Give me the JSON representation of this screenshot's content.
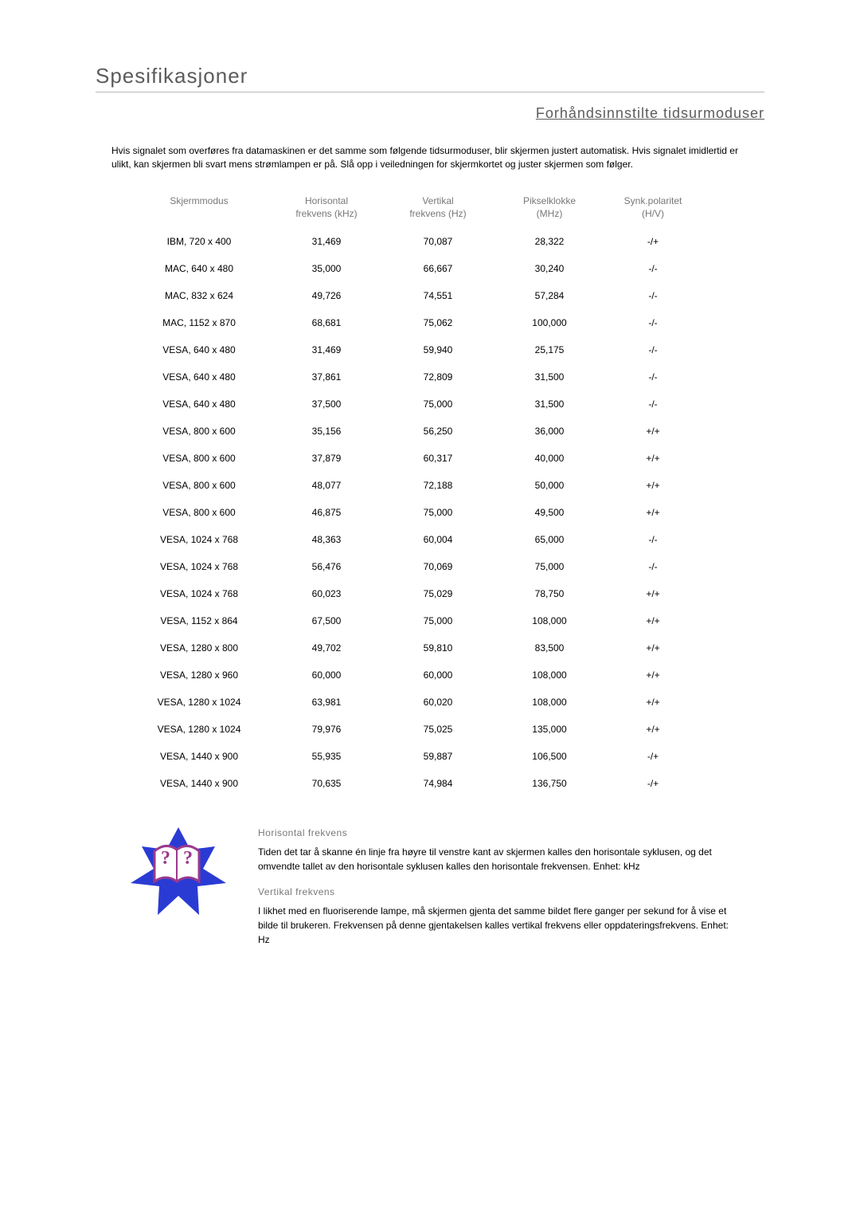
{
  "title": "Spesifikasjoner",
  "subtitle": "Forhåndsinnstilte tidsurmoduser",
  "intro": "Hvis signalet som overføres fra datamaskinen er det samme som følgende tidsurmoduser, blir skjermen justert automatisk. Hvis signalet imidlertid er ulikt, kan skjermen bli svart mens strømlampen er på. Slå opp i veiledningen for skjermkortet og juster skjermen som følger.",
  "columns": [
    "Skjermmodus",
    "Horisontal\nfrekvens (kHz)",
    "Vertikal\nfrekvens (Hz)",
    "Pikselklokke\n(MHz)",
    "Synk.polaritet\n(H/V)"
  ],
  "rows": [
    [
      "IBM, 720 x 400",
      "31,469",
      "70,087",
      "28,322",
      "-/+"
    ],
    [
      "MAC, 640 x 480",
      "35,000",
      "66,667",
      "30,240",
      "-/-"
    ],
    [
      "MAC, 832 x 624",
      "49,726",
      "74,551",
      "57,284",
      "-/-"
    ],
    [
      "MAC, 1152 x 870",
      "68,681",
      "75,062",
      "100,000",
      "-/-"
    ],
    [
      "VESA, 640 x 480",
      "31,469",
      "59,940",
      "25,175",
      "-/-"
    ],
    [
      "VESA, 640 x 480",
      "37,861",
      "72,809",
      "31,500",
      "-/-"
    ],
    [
      "VESA, 640 x 480",
      "37,500",
      "75,000",
      "31,500",
      "-/-"
    ],
    [
      "VESA, 800 x 600",
      "35,156",
      "56,250",
      "36,000",
      "+/+"
    ],
    [
      "VESA, 800 x 600",
      "37,879",
      "60,317",
      "40,000",
      "+/+"
    ],
    [
      "VESA, 800 x 600",
      "48,077",
      "72,188",
      "50,000",
      "+/+"
    ],
    [
      "VESA, 800 x 600",
      "46,875",
      "75,000",
      "49,500",
      "+/+"
    ],
    [
      "VESA, 1024 x 768",
      "48,363",
      "60,004",
      "65,000",
      "-/-"
    ],
    [
      "VESA, 1024 x 768",
      "56,476",
      "70,069",
      "75,000",
      "-/-"
    ],
    [
      "VESA, 1024 x 768",
      "60,023",
      "75,029",
      "78,750",
      "+/+"
    ],
    [
      "VESA, 1152 x 864",
      "67,500",
      "75,000",
      "108,000",
      "+/+"
    ],
    [
      "VESA, 1280 x 800",
      "49,702",
      "59,810",
      "83,500",
      "+/+"
    ],
    [
      "VESA, 1280 x 960",
      "60,000",
      "60,000",
      "108,000",
      "+/+"
    ],
    [
      "VESA, 1280 x 1024",
      "63,981",
      "60,020",
      "108,000",
      "+/+"
    ],
    [
      "VESA, 1280 x 1024",
      "79,976",
      "75,025",
      "135,000",
      "+/+"
    ],
    [
      "VESA, 1440 x 900",
      "55,935",
      "59,887",
      "106,500",
      "-/+"
    ],
    [
      "VESA, 1440 x 900",
      "70,635",
      "74,984",
      "136,750",
      "-/+"
    ]
  ],
  "explain": {
    "h1": "Horisontal frekvens",
    "p1": "Tiden det tar å skanne én linje fra høyre til venstre kant av skjermen kalles den horisontale syklusen, og det omvendte tallet av den horisontale syklusen kalles den horisontale frekvensen. Enhet: kHz",
    "h2": "Vertikal frekvens",
    "p2": "I likhet med en fluoriserende lampe, må skjermen gjenta det samme bildet flere ganger per sekund for å vise et bilde til brukeren. Frekvensen på denne gjentakelsen kalles vertikal frekvens eller oppdateringsfrekvens. Enhet: Hz"
  },
  "iconColors": {
    "star": "#2a3bd4",
    "book": "#ffffff",
    "bookStroke": "#9a3a8c",
    "q": "#9a3a8c"
  }
}
